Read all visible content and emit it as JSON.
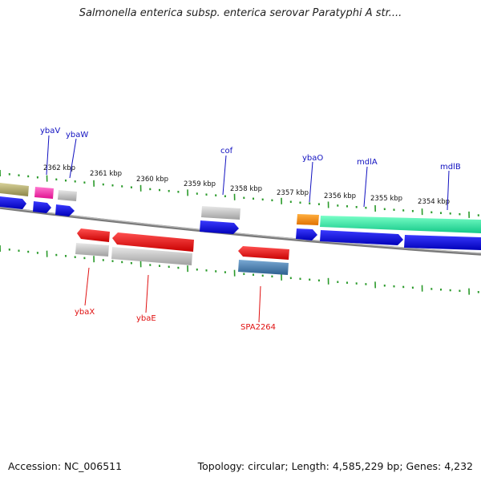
{
  "title": "Salmonella enterica subsp. enterica serovar Paratyphi A str....",
  "footer": {
    "accession": "Accession: NC_006511",
    "summary": "Topology: circular; Length: 4,585,229 bp; Genes: 4,232"
  },
  "colors": {
    "backbone": "#8a8a8a",
    "ticks": "#2a9a2a",
    "label_forward": "#1010c0",
    "label_reverse": "#e01010"
  },
  "scale": {
    "labels": [
      "2362 kbp",
      "2361 kbp",
      "2360 kbp",
      "2359 kbp",
      "2358 kbp",
      "2357 kbp",
      "2356 kbp",
      "2355 kbp",
      "2354 kbp"
    ]
  },
  "genes": {
    "forward_labels": [
      "ybaV",
      "ybaW",
      "cof",
      "ybaO",
      "mdlA",
      "mdlB"
    ],
    "reverse_labels": [
      "ybaX",
      "ybaE",
      "SPA2264"
    ]
  }
}
